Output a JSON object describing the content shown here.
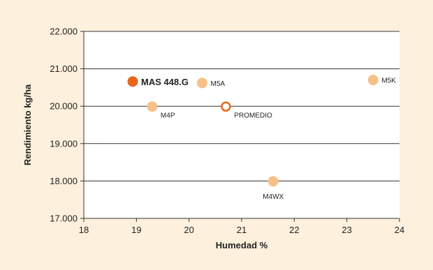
{
  "colors": {
    "background": "#fdf0dc",
    "plot_background": "#ffffff",
    "highlight": "#e8661a",
    "others": "#f6c188",
    "average_stroke": "#e8661a",
    "gridline": "#333333"
  },
  "chart_data": {
    "type": "scatter",
    "xlabel": "Humedad %",
    "ylabel": "Rendimiento kg/ha",
    "xlim": [
      18,
      24
    ],
    "ylim": [
      17000,
      22000
    ],
    "x_ticks": [
      "18",
      "19",
      "20",
      "21",
      "22",
      "23",
      "24"
    ],
    "y_ticks": [
      "17.000",
      "18.000",
      "19.000",
      "20.000",
      "21.000",
      "22.000"
    ],
    "grid": "horizontal",
    "legend": "none",
    "points": [
      {
        "label": "MAS 448.G",
        "x": 18.93,
        "y": 20660,
        "style": "highlight",
        "label_position": "right"
      },
      {
        "label": "M5A",
        "x": 20.25,
        "y": 20620,
        "style": "other",
        "label_position": "right"
      },
      {
        "label": "M4P",
        "x": 19.3,
        "y": 19990,
        "style": "other",
        "label_position": "below-right"
      },
      {
        "label": "PROMEDIO",
        "x": 20.7,
        "y": 19990,
        "style": "average",
        "label_position": "below-right"
      },
      {
        "label": "M5K",
        "x": 23.5,
        "y": 20700,
        "style": "other",
        "label_position": "right"
      },
      {
        "label": "M4WX",
        "x": 21.6,
        "y": 17990,
        "style": "other",
        "label_position": "below"
      }
    ]
  }
}
